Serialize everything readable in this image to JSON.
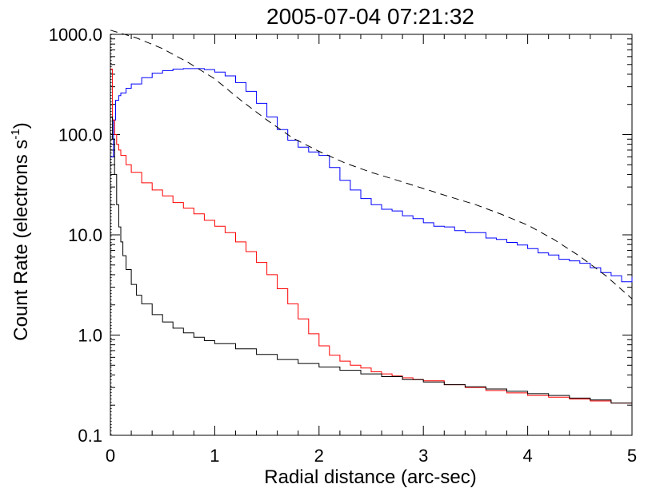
{
  "chart_data": {
    "type": "line",
    "title": "2005-07-04  07:21:32",
    "xlabel": "Radial distance (arc-sec)",
    "ylabel": {
      "prefix": "Count Rate (electrons s",
      "superscript": "-1",
      "suffix": ")"
    },
    "xlim": [
      0,
      5
    ],
    "ylim": [
      0.1,
      1000
    ],
    "yscale": "log",
    "x_ticks": [
      {
        "value": 0,
        "label": "0"
      },
      {
        "value": 1,
        "label": "1"
      },
      {
        "value": 2,
        "label": "2"
      },
      {
        "value": 3,
        "label": "3"
      },
      {
        "value": 4,
        "label": "4"
      },
      {
        "value": 5,
        "label": "5"
      }
    ],
    "y_ticks": [
      {
        "value": 0.1,
        "label": "0.1"
      },
      {
        "value": 1,
        "label": "1.0"
      },
      {
        "value": 10,
        "label": "10.0"
      },
      {
        "value": 100,
        "label": "100.0"
      },
      {
        "value": 1000,
        "label": "1000.0"
      }
    ],
    "grid": false,
    "reference_line": {
      "x": 0,
      "style": "dotted",
      "color": "#000000"
    },
    "series": [
      {
        "style": "step",
        "color": "#0000ff",
        "x": [
          0.0,
          0.03,
          0.05,
          0.08,
          0.1,
          0.15,
          0.2,
          0.3,
          0.4,
          0.5,
          0.6,
          0.7,
          0.8,
          0.9,
          1.0,
          1.1,
          1.2,
          1.3,
          1.4,
          1.5,
          1.6,
          1.7,
          1.8,
          1.9,
          2.0,
          2.1,
          2.2,
          2.3,
          2.4,
          2.5,
          2.6,
          2.7,
          2.8,
          2.9,
          3.0,
          3.1,
          3.2,
          3.3,
          3.4,
          3.5,
          3.6,
          3.7,
          3.8,
          3.9,
          4.0,
          4.1,
          4.2,
          4.3,
          4.4,
          4.5,
          4.6,
          4.7,
          4.8,
          4.9,
          5.0
        ],
        "y": [
          60,
          140,
          220,
          245,
          260,
          290,
          320,
          370,
          410,
          435,
          450,
          455,
          455,
          445,
          420,
          385,
          330,
          270,
          205,
          150,
          112,
          88,
          75,
          67,
          62,
          47,
          35,
          28,
          23,
          20,
          18,
          17.3,
          15.5,
          14.5,
          13.2,
          12.2,
          12,
          11,
          10.5,
          10.5,
          9.3,
          9,
          8.4,
          7.9,
          7.3,
          6.6,
          6.3,
          5.7,
          5.5,
          5.2,
          4.7,
          4.2,
          3.9,
          3.4,
          3.8
        ]
      },
      {
        "style": "step",
        "color": "#ff0000",
        "x": [
          0.0,
          0.02,
          0.04,
          0.06,
          0.08,
          0.1,
          0.15,
          0.2,
          0.3,
          0.4,
          0.5,
          0.6,
          0.7,
          0.8,
          0.9,
          1.0,
          1.1,
          1.2,
          1.3,
          1.4,
          1.5,
          1.6,
          1.7,
          1.8,
          1.9,
          2.0,
          2.1,
          2.2,
          2.3,
          2.4,
          2.5,
          2.6,
          2.7,
          2.8,
          2.9,
          3.0,
          3.2,
          3.4,
          3.6,
          3.8,
          4.0,
          4.2,
          4.4,
          4.6,
          4.8,
          5.0
        ],
        "y": [
          450,
          140,
          100,
          80,
          70,
          62,
          50,
          42,
          33,
          28,
          24.5,
          21,
          18.5,
          16.2,
          14,
          12.2,
          10.5,
          8.5,
          6.8,
          5.3,
          4,
          2.9,
          2.05,
          1.45,
          1.03,
          0.78,
          0.63,
          0.55,
          0.5,
          0.47,
          0.43,
          0.41,
          0.39,
          0.375,
          0.36,
          0.35,
          0.32,
          0.3,
          0.28,
          0.265,
          0.25,
          0.24,
          0.23,
          0.22,
          0.21,
          0.205
        ]
      },
      {
        "style": "step",
        "color": "#000000",
        "x": [
          0.0,
          0.02,
          0.04,
          0.06,
          0.08,
          0.1,
          0.12,
          0.15,
          0.2,
          0.25,
          0.3,
          0.4,
          0.5,
          0.6,
          0.7,
          0.8,
          0.9,
          1.0,
          1.2,
          1.4,
          1.6,
          1.8,
          2.0,
          2.2,
          2.4,
          2.6,
          2.8,
          3.0,
          3.2,
          3.4,
          3.6,
          3.8,
          4.0,
          4.2,
          4.4,
          4.6,
          4.8,
          5.0
        ],
        "y": [
          150,
          90,
          40,
          20,
          12,
          8.5,
          6.2,
          4.5,
          3.2,
          2.5,
          2.05,
          1.6,
          1.35,
          1.17,
          1.05,
          0.95,
          0.88,
          0.82,
          0.73,
          0.64,
          0.57,
          0.52,
          0.48,
          0.445,
          0.41,
          0.385,
          0.36,
          0.34,
          0.32,
          0.305,
          0.29,
          0.275,
          0.26,
          0.25,
          0.235,
          0.225,
          0.21,
          0.2
        ]
      },
      {
        "style": "dashed",
        "color": "#000000",
        "x": [
          0.0,
          0.25,
          0.5,
          0.75,
          1.0,
          1.25,
          1.5,
          1.75,
          2.0,
          2.25,
          2.5,
          2.75,
          3.0,
          3.25,
          3.5,
          3.75,
          4.0,
          4.25,
          4.5,
          4.75,
          5.0
        ],
        "y": [
          1100,
          920,
          720,
          520,
          360,
          220,
          140,
          92,
          68,
          52,
          42,
          35,
          29,
          24,
          20,
          16,
          12.5,
          9,
          6.1,
          3.9,
          2.3
        ]
      }
    ]
  }
}
